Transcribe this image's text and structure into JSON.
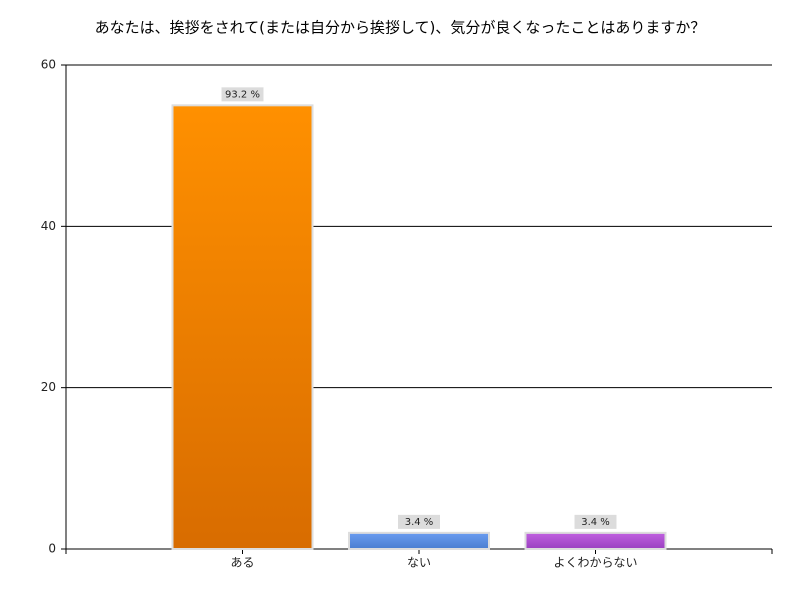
{
  "chart_data": {
    "type": "bar",
    "title": "あなたは、挨拶をされて(または自分から挨拶して)、気分が良くなったことはありますか？",
    "categories": [
      "ある",
      "ない",
      "よくわからない"
    ],
    "values": [
      55,
      2,
      2
    ],
    "data_labels": [
      {
        "value": 93.2,
        "label": "93.2 %"
      },
      {
        "value": 3.4,
        "label": "3.4 %"
      },
      {
        "value": 3.4,
        "label": "3.4 %"
      }
    ],
    "colors": [
      "#ee8400",
      "#5a8ee0",
      "#b050d0"
    ],
    "ylim": [
      0,
      60
    ],
    "yticks": [
      0,
      20,
      40,
      60
    ],
    "grid": true
  }
}
